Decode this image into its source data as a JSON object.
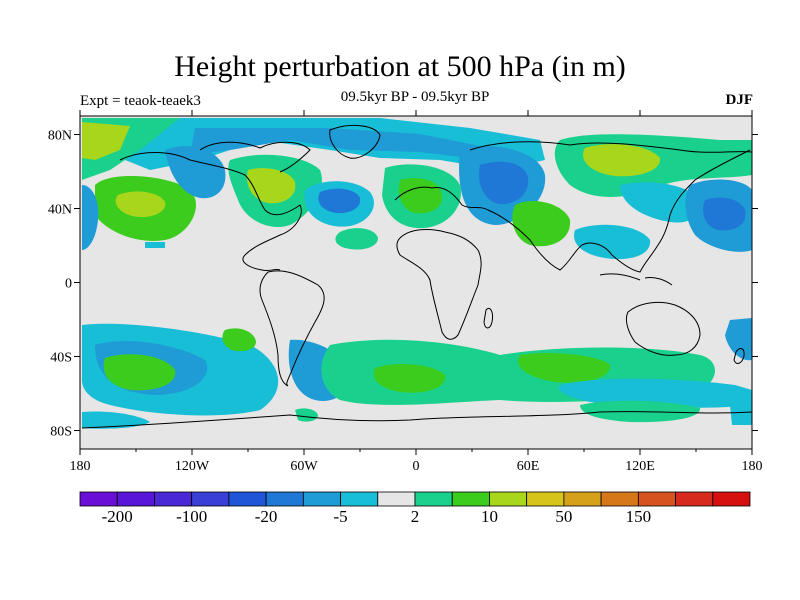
{
  "title": "Height perturbation at 500 hPa (in m)",
  "experiment": "Expt = teaok-teaek3",
  "period": "09.5kyr BP - 09.5kyr BP",
  "season": "DJF",
  "map": {
    "projection": "cylindrical-equidistant",
    "lon_range": [
      -180,
      180
    ],
    "lat_range": [
      -90,
      90
    ],
    "lon_ticks": [
      "180",
      "120W",
      "60W",
      "0",
      "60E",
      "120E",
      "180"
    ],
    "lat_ticks": [
      "80N",
      "40N",
      "0",
      "40S",
      "80S"
    ],
    "background_color": "#e6e6e6"
  },
  "colorbar": {
    "colors": [
      "#6a0fd6",
      "#5a16d6",
      "#4a28d6",
      "#3a3fd6",
      "#1f55d6",
      "#1f78d6",
      "#1f9bd6",
      "#18bdd6",
      "#e6e6e6",
      "#19d18c",
      "#3ccc1e",
      "#a8d61a",
      "#d6c41a",
      "#d6a11a",
      "#d6781a",
      "#d6521e",
      "#d62a1e",
      "#d60f0f"
    ],
    "labels": [
      "-200",
      "-100",
      "-20",
      "-5",
      "2",
      "10",
      "50",
      "150"
    ]
  }
}
